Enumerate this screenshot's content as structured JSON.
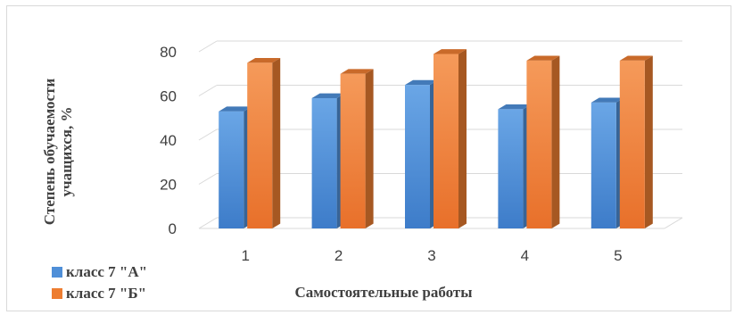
{
  "chart_data": {
    "type": "bar",
    "style": "3d-clustered-column",
    "categories": [
      "1",
      "2",
      "3",
      "4",
      "5"
    ],
    "series": [
      {
        "name": "класс 7 \"А\"",
        "color": "#4f8fd8",
        "values": [
          53,
          59,
          65,
          54,
          57
        ]
      },
      {
        "name": "класс 7 \"Б\"",
        "color": "#ed7d31",
        "values": [
          75,
          70,
          79,
          76,
          76
        ]
      }
    ],
    "title": "",
    "xlabel": "Самостоятельные работы",
    "ylabel": "Степень обучаемости учащихся, %",
    "ylim": [
      0,
      80
    ],
    "yticks": [
      "0",
      "20",
      "40",
      "60",
      "80"
    ],
    "grid": true,
    "legend_position": "bottom-left"
  }
}
